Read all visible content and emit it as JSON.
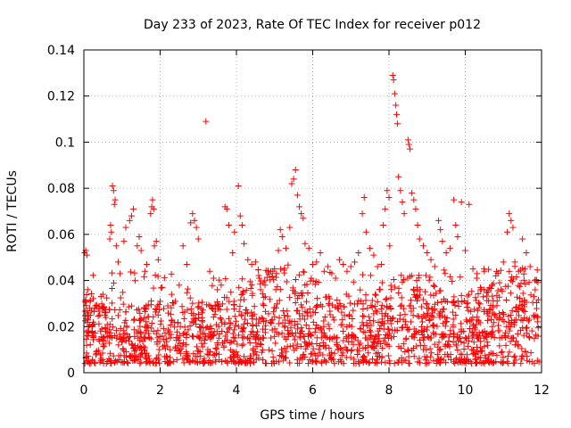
{
  "chart_data": {
    "type": "scatter",
    "title": "Day 233 of 2023, Rate Of TEC Index for receiver p012",
    "xlabel": "GPS time / hours",
    "ylabel": "ROTI / TECUs",
    "xlim": [
      0,
      12
    ],
    "ylim": [
      0,
      0.14
    ],
    "x_ticks": [
      0,
      2,
      4,
      6,
      8,
      10,
      12
    ],
    "x_tick_labels": [
      "0",
      "2",
      "4",
      "6",
      "8",
      "10",
      "12"
    ],
    "y_ticks": [
      0,
      0.02,
      0.04,
      0.06,
      0.08,
      0.1,
      0.12,
      0.14
    ],
    "y_tick_labels": [
      "0",
      "0.02",
      "0.04",
      "0.06",
      "0.08",
      "0.1",
      "0.12",
      "0.14"
    ],
    "grid": true,
    "marker": "+",
    "color": "#ff0000",
    "series": [
      {
        "name": "ROTI",
        "points": [
          [
            0.02,
            0.052
          ],
          [
            0.05,
            0.053
          ],
          [
            0.08,
            0.051
          ],
          [
            0.1,
            0.036
          ],
          [
            0.12,
            0.025
          ],
          [
            0.15,
            0.028
          ],
          [
            0.2,
            0.027
          ],
          [
            0.3,
            0.029
          ],
          [
            0.45,
            0.033
          ],
          [
            0.5,
            0.034
          ],
          [
            0.75,
            0.081
          ],
          [
            0.78,
            0.079
          ],
          [
            0.8,
            0.073
          ],
          [
            0.82,
            0.075
          ],
          [
            0.7,
            0.064
          ],
          [
            0.72,
            0.061
          ],
          [
            0.68,
            0.058
          ],
          [
            0.85,
            0.055
          ],
          [
            0.9,
            0.048
          ],
          [
            0.95,
            0.043
          ],
          [
            1.05,
            0.057
          ],
          [
            1.1,
            0.063
          ],
          [
            1.2,
            0.066
          ],
          [
            1.25,
            0.068
          ],
          [
            1.3,
            0.071
          ],
          [
            1.4,
            0.055
          ],
          [
            1.45,
            0.059
          ],
          [
            1.5,
            0.053
          ],
          [
            1.6,
            0.044
          ],
          [
            1.65,
            0.047
          ],
          [
            1.75,
            0.069
          ],
          [
            1.78,
            0.072
          ],
          [
            1.8,
            0.075
          ],
          [
            1.83,
            0.071
          ],
          [
            1.85,
            0.055
          ],
          [
            1.9,
            0.057
          ],
          [
            1.95,
            0.049
          ],
          [
            2.0,
            0.031
          ],
          [
            2.05,
            0.037
          ],
          [
            2.2,
            0.029
          ],
          [
            2.3,
            0.034
          ],
          [
            2.4,
            0.031
          ],
          [
            2.5,
            0.038
          ],
          [
            2.6,
            0.055
          ],
          [
            2.7,
            0.047
          ],
          [
            2.8,
            0.065
          ],
          [
            2.85,
            0.069
          ],
          [
            2.9,
            0.066
          ],
          [
            2.95,
            0.063
          ],
          [
            3.0,
            0.058
          ],
          [
            3.2,
            0.109
          ],
          [
            3.3,
            0.044
          ],
          [
            3.4,
            0.041
          ],
          [
            3.5,
            0.036
          ],
          [
            3.6,
            0.038
          ],
          [
            3.7,
            0.072
          ],
          [
            3.75,
            0.071
          ],
          [
            3.8,
            0.064
          ],
          [
            3.9,
            0.052
          ],
          [
            3.95,
            0.061
          ],
          [
            4.05,
            0.081
          ],
          [
            4.1,
            0.068
          ],
          [
            4.15,
            0.064
          ],
          [
            4.2,
            0.056
          ],
          [
            4.3,
            0.049
          ],
          [
            4.4,
            0.047
          ],
          [
            4.5,
            0.048
          ],
          [
            4.6,
            0.041
          ],
          [
            4.75,
            0.038
          ],
          [
            4.9,
            0.044
          ],
          [
            5.0,
            0.045
          ],
          [
            5.1,
            0.053
          ],
          [
            5.15,
            0.062
          ],
          [
            5.2,
            0.059
          ],
          [
            5.3,
            0.054
          ],
          [
            5.4,
            0.063
          ],
          [
            5.45,
            0.082
          ],
          [
            5.5,
            0.084
          ],
          [
            5.55,
            0.088
          ],
          [
            5.6,
            0.077
          ],
          [
            5.65,
            0.072
          ],
          [
            5.7,
            0.069
          ],
          [
            5.75,
            0.067
          ],
          [
            5.8,
            0.056
          ],
          [
            5.9,
            0.054
          ],
          [
            6.0,
            0.047
          ],
          [
            6.1,
            0.048
          ],
          [
            6.2,
            0.052
          ],
          [
            6.3,
            0.044
          ],
          [
            6.4,
            0.046
          ],
          [
            6.5,
            0.043
          ],
          [
            6.6,
            0.041
          ],
          [
            6.7,
            0.049
          ],
          [
            6.8,
            0.047
          ],
          [
            6.9,
            0.044
          ],
          [
            7.0,
            0.046
          ],
          [
            7.1,
            0.048
          ],
          [
            7.2,
            0.052
          ],
          [
            7.3,
            0.069
          ],
          [
            7.35,
            0.076
          ],
          [
            7.4,
            0.061
          ],
          [
            7.5,
            0.054
          ],
          [
            7.6,
            0.051
          ],
          [
            7.7,
            0.046
          ],
          [
            7.8,
            0.047
          ],
          [
            7.85,
            0.064
          ],
          [
            7.9,
            0.071
          ],
          [
            7.95,
            0.079
          ],
          [
            8.0,
            0.076
          ],
          [
            8.02,
            0.055
          ],
          [
            8.1,
            0.129
          ],
          [
            8.12,
            0.127
          ],
          [
            8.15,
            0.121
          ],
          [
            8.18,
            0.116
          ],
          [
            8.2,
            0.112
          ],
          [
            8.22,
            0.108
          ],
          [
            8.25,
            0.085
          ],
          [
            8.3,
            0.079
          ],
          [
            8.35,
            0.074
          ],
          [
            8.4,
            0.069
          ],
          [
            8.5,
            0.101
          ],
          [
            8.52,
            0.099
          ],
          [
            8.55,
            0.097
          ],
          [
            8.6,
            0.078
          ],
          [
            8.65,
            0.075
          ],
          [
            8.7,
            0.071
          ],
          [
            8.75,
            0.064
          ],
          [
            8.8,
            0.058
          ],
          [
            8.9,
            0.055
          ],
          [
            9.0,
            0.052
          ],
          [
            9.1,
            0.049
          ],
          [
            9.2,
            0.046
          ],
          [
            9.3,
            0.066
          ],
          [
            9.35,
            0.062
          ],
          [
            9.4,
            0.057
          ],
          [
            9.5,
            0.052
          ],
          [
            9.6,
            0.054
          ],
          [
            9.7,
            0.075
          ],
          [
            9.75,
            0.064
          ],
          [
            9.8,
            0.059
          ],
          [
            9.9,
            0.074
          ],
          [
            10.0,
            0.053
          ],
          [
            10.1,
            0.073
          ],
          [
            10.2,
            0.045
          ],
          [
            10.3,
            0.041
          ],
          [
            10.4,
            0.037
          ],
          [
            10.5,
            0.044
          ],
          [
            10.6,
            0.035
          ],
          [
            10.7,
            0.038
          ],
          [
            10.8,
            0.042
          ],
          [
            10.9,
            0.039
          ],
          [
            11.0,
            0.048
          ],
          [
            11.1,
            0.061
          ],
          [
            11.15,
            0.069
          ],
          [
            11.2,
            0.066
          ],
          [
            11.25,
            0.063
          ],
          [
            11.3,
            0.048
          ],
          [
            11.4,
            0.044
          ],
          [
            11.5,
            0.058
          ],
          [
            11.6,
            0.052
          ],
          [
            11.7,
            0.046
          ],
          [
            11.8,
            0.033
          ],
          [
            11.9,
            0.024
          ]
        ]
      }
    ]
  }
}
